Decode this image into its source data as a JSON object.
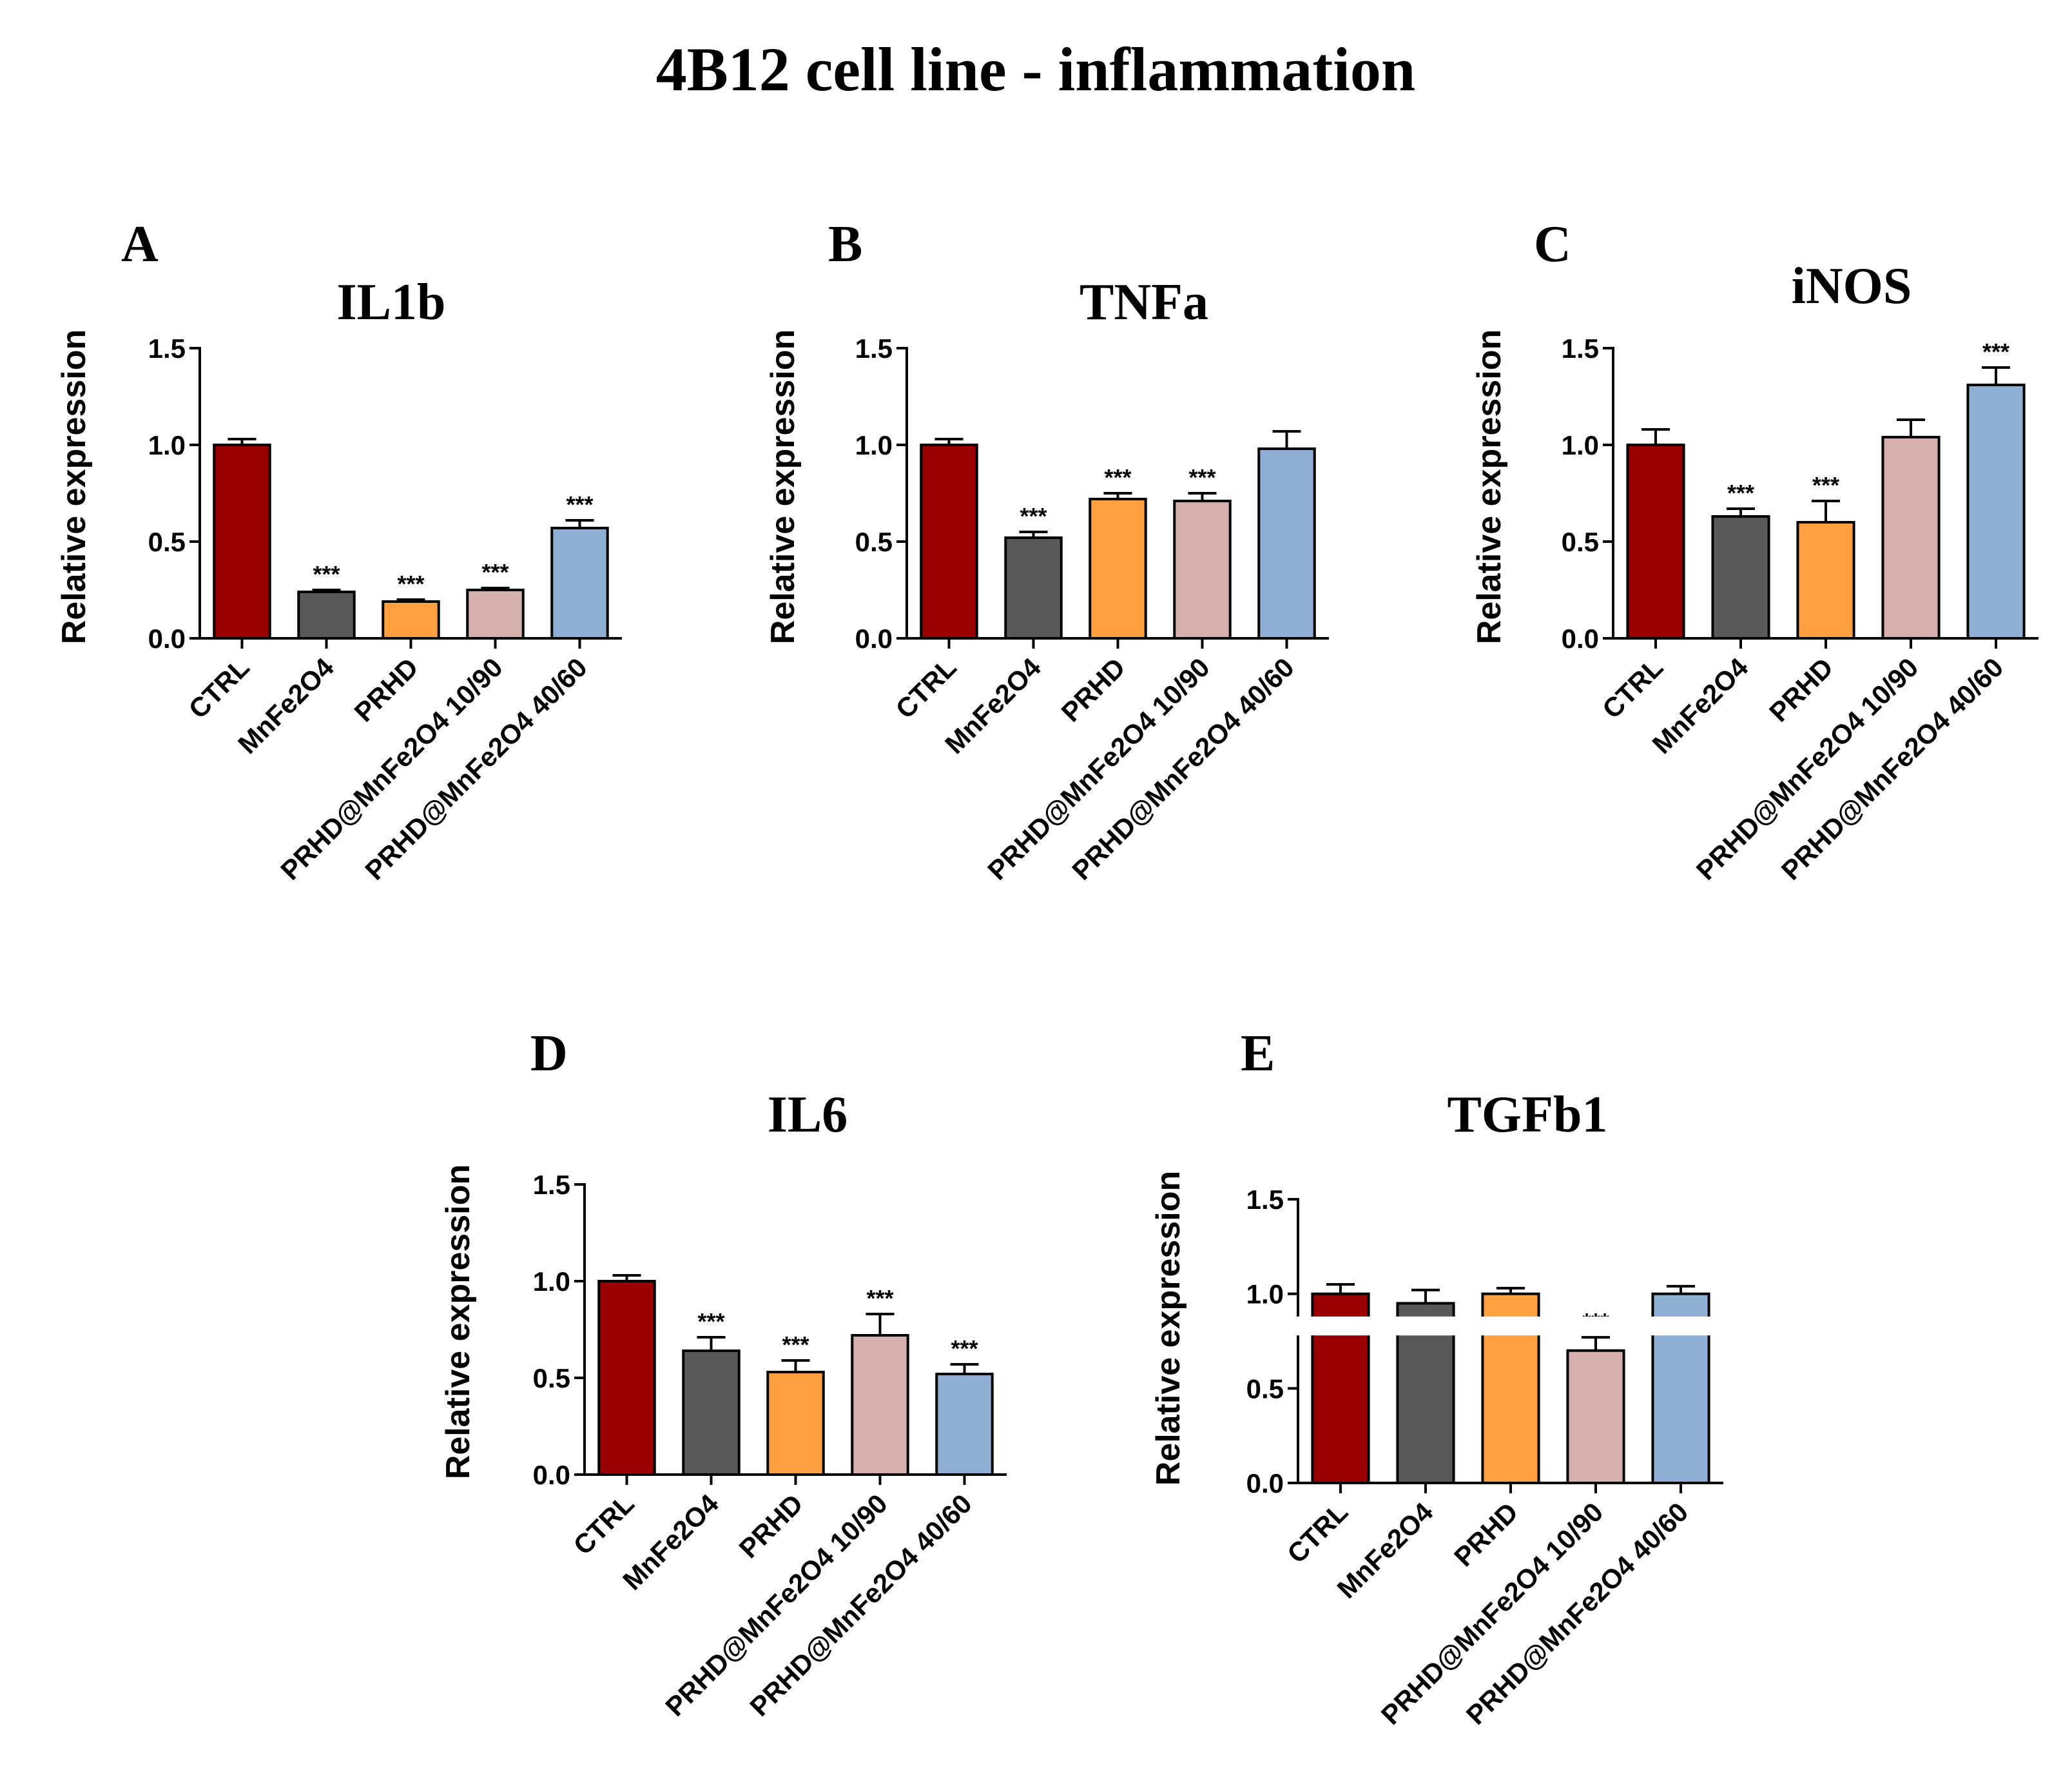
{
  "figure": {
    "title": "4B12 cell line - inflammation"
  },
  "chart_data": [
    {
      "panel": "A",
      "type": "bar",
      "title": "IL1b",
      "ylabel": "Relative expression",
      "xlabel": "",
      "ylim": [
        0,
        1.5
      ],
      "yticks": [
        0.0,
        0.5,
        1.0,
        1.5
      ],
      "yticklabels": [
        "0.0",
        "0.5",
        "1.0",
        "1.5"
      ],
      "axis_break": false,
      "categories": [
        "CTRL",
        "MnFe2O4",
        "PRHD",
        "PRHD@MnFe2O4 10/90",
        "PRHD@MnFe2O4 40/60"
      ],
      "values": [
        1.0,
        0.24,
        0.19,
        0.25,
        0.57
      ],
      "errors": [
        0.03,
        0.01,
        0.01,
        0.01,
        0.04
      ],
      "significance": [
        "",
        "***",
        "***",
        "***",
        "***"
      ],
      "colors": [
        "#990000",
        "#595959",
        "#ffa040",
        "#d6b0ac",
        "#8eaed4"
      ]
    },
    {
      "panel": "B",
      "type": "bar",
      "title": "TNFa",
      "ylabel": "Relative expression",
      "xlabel": "",
      "ylim": [
        0,
        1.5
      ],
      "yticks": [
        0.0,
        0.5,
        1.0,
        1.5
      ],
      "yticklabels": [
        "0.0",
        "0.5",
        "1.0",
        "1.5"
      ],
      "axis_break": false,
      "categories": [
        "CTRL",
        "MnFe2O4",
        "PRHD",
        "PRHD@MnFe2O4 10/90",
        "PRHD@MnFe2O4 40/60"
      ],
      "values": [
        1.0,
        0.52,
        0.72,
        0.71,
        0.98
      ],
      "errors": [
        0.03,
        0.03,
        0.03,
        0.04,
        0.09
      ],
      "significance": [
        "",
        "***",
        "***",
        "***",
        ""
      ],
      "colors": [
        "#990000",
        "#595959",
        "#ffa040",
        "#d6b0ac",
        "#8eaed4"
      ]
    },
    {
      "panel": "C",
      "type": "bar",
      "title": "iNOS",
      "ylabel": "Relative expression",
      "xlabel": "",
      "ylim": [
        0,
        1.5
      ],
      "yticks": [
        0.0,
        0.5,
        1.0,
        1.5
      ],
      "yticklabels": [
        "0.0",
        "0.5",
        "1.0",
        "1.5"
      ],
      "axis_break": false,
      "categories": [
        "CTRL",
        "MnFe2O4",
        "PRHD",
        "PRHD@MnFe2O4 10/90",
        "PRHD@MnFe2O4 40/60"
      ],
      "values": [
        1.0,
        0.63,
        0.6,
        1.04,
        1.31
      ],
      "errors": [
        0.08,
        0.04,
        0.11,
        0.09,
        0.09
      ],
      "significance": [
        "",
        "***",
        "***",
        "",
        "***"
      ],
      "colors": [
        "#990000",
        "#595959",
        "#ffa040",
        "#d6b0ac",
        "#8eaed4"
      ]
    },
    {
      "panel": "D",
      "type": "bar",
      "title": "IL6",
      "ylabel": "Relative expression",
      "xlabel": "",
      "ylim": [
        0,
        1.5
      ],
      "yticks": [
        0.0,
        0.5,
        1.0,
        1.5
      ],
      "yticklabels": [
        "0.0",
        "0.5",
        "1.0",
        "1.5"
      ],
      "axis_break": false,
      "categories": [
        "CTRL",
        "MnFe2O4",
        "PRHD",
        "PRHD@MnFe2O4 10/90",
        "PRHD@MnFe2O4 40/60"
      ],
      "values": [
        1.0,
        0.64,
        0.53,
        0.72,
        0.52
      ],
      "errors": [
        0.03,
        0.07,
        0.06,
        0.11,
        0.05
      ],
      "significance": [
        "",
        "***",
        "***",
        "***",
        "***"
      ],
      "colors": [
        "#990000",
        "#595959",
        "#ffa040",
        "#d6b0ac",
        "#8eaed4"
      ]
    },
    {
      "panel": "E",
      "type": "bar",
      "title": "TGFb1",
      "ylabel": "Relative expression",
      "xlabel": "",
      "ylim": [
        0,
        1.5
      ],
      "yticks": [
        0.0,
        0.5,
        1.0,
        1.5
      ],
      "yticklabels": [
        "0.0",
        "0.5",
        "1.0",
        "1.5"
      ],
      "axis_break": true,
      "axis_break_range": [
        0.78,
        0.88
      ],
      "categories": [
        "CTRL",
        "MnFe2O4",
        "PRHD",
        "PRHD@MnFe2O4 10/90",
        "PRHD@MnFe2O4 40/60"
      ],
      "values": [
        1.0,
        0.95,
        1.0,
        0.7,
        1.0
      ],
      "errors": [
        0.05,
        0.07,
        0.03,
        0.07,
        0.04
      ],
      "significance": [
        "",
        "",
        "",
        "***",
        ""
      ],
      "colors": [
        "#990000",
        "#595959",
        "#ffa040",
        "#d6b0ac",
        "#8eaed4"
      ]
    }
  ]
}
